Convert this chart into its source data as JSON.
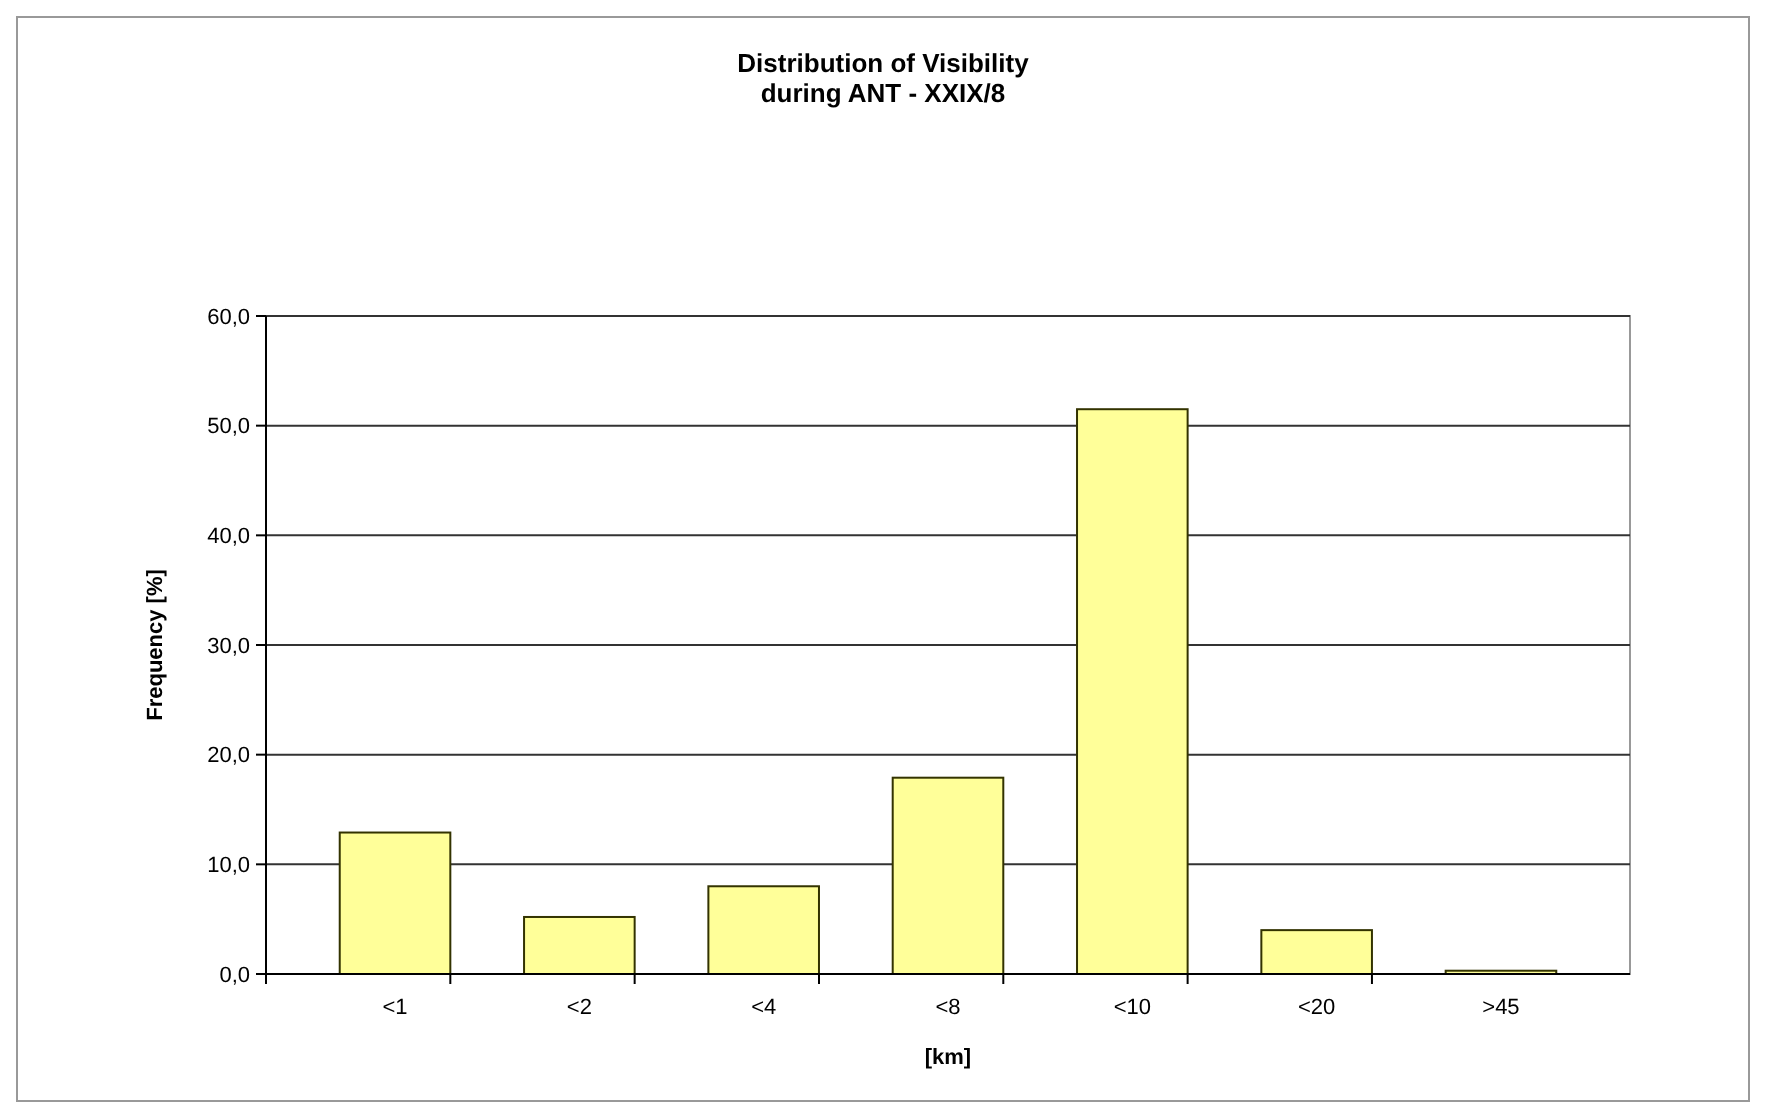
{
  "chart_data": {
    "type": "bar",
    "title": "Distribution of Visibility\nduring ANT - XXIX/8",
    "xlabel": "[km]",
    "ylabel": "Frequency [%]",
    "categories": [
      "<1",
      "<2",
      "<4",
      "<8",
      "<10",
      "<20",
      ">45"
    ],
    "values": [
      12.9,
      5.2,
      8.0,
      17.9,
      51.5,
      4.0,
      0.3
    ],
    "color": "#ffff99",
    "ylim": [
      0,
      60
    ],
    "yticks": [
      {
        "value": 0,
        "label": "0,0"
      },
      {
        "value": 10,
        "label": "10,0"
      },
      {
        "value": 20,
        "label": "20,0"
      },
      {
        "value": 30,
        "label": "30,0"
      },
      {
        "value": 40,
        "label": "40,0"
      },
      {
        "value": 50,
        "label": "50,0"
      },
      {
        "value": 60,
        "label": "60,0"
      }
    ],
    "grid": "y"
  }
}
